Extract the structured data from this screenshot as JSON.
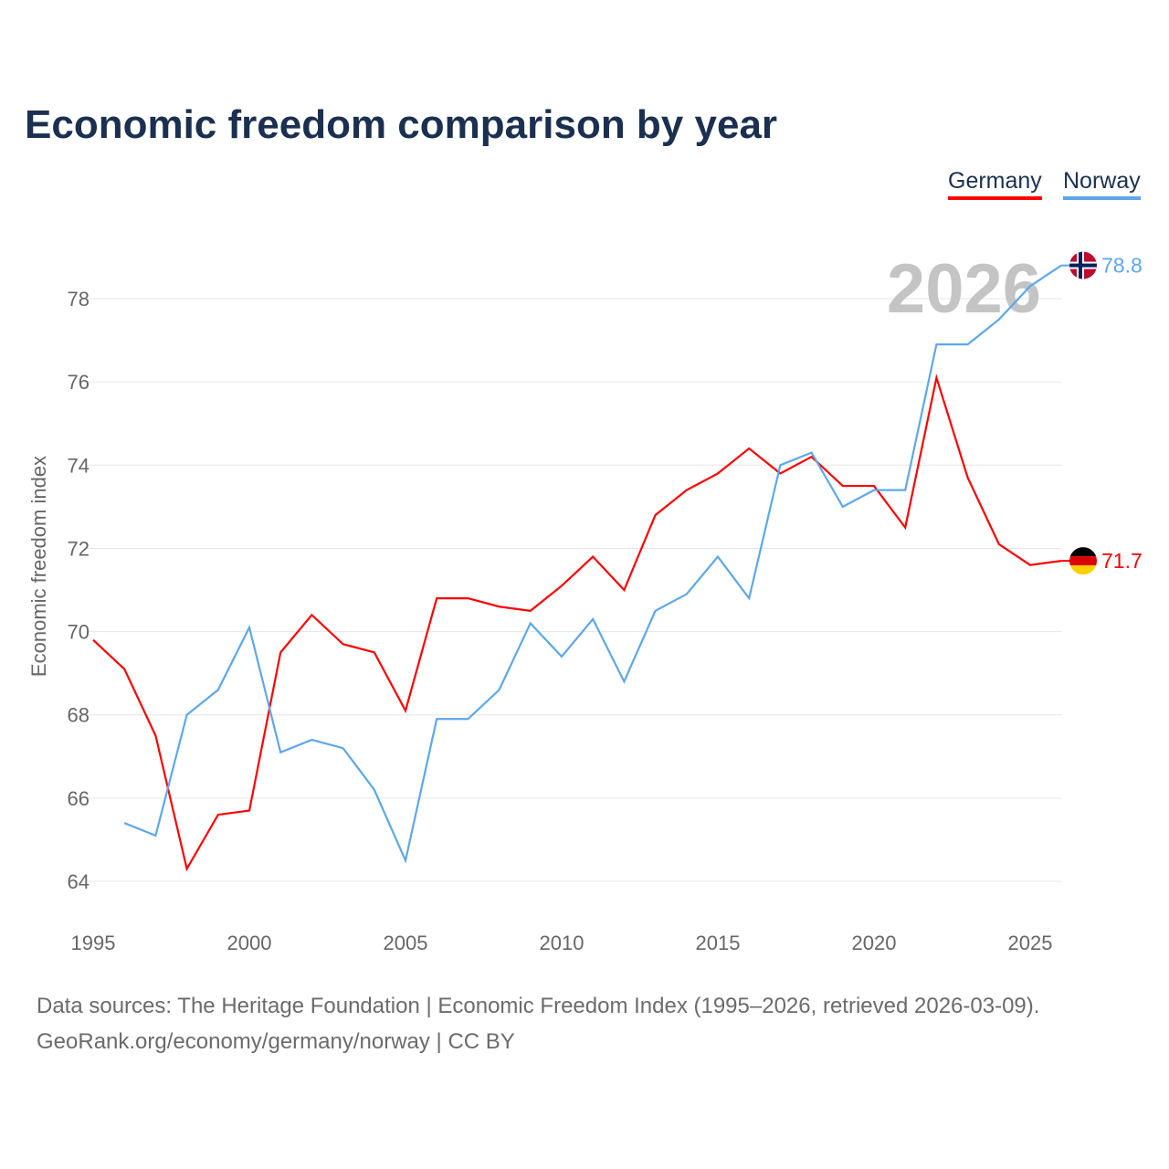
{
  "title": "Economic freedom comparison by year",
  "legend": [
    {
      "label": "Germany",
      "color": "#ff0000"
    },
    {
      "label": "Norway",
      "color": "#5da7ec"
    }
  ],
  "footer": {
    "line1": "Data sources: The Heritage Foundation | Economic Freedom Index (1995–2026, retrieved 2026-03-09).",
    "line2": "GeoRank.org/economy/germany/norway | CC BY"
  },
  "chart_data": {
    "type": "line",
    "title": "Economic freedom comparison by year",
    "xlabel": "",
    "ylabel": "Economic freedom index",
    "xlim": [
      1995,
      2026
    ],
    "ylim": [
      63.5,
      79.5
    ],
    "xticks": [
      1995,
      2000,
      2005,
      2010,
      2015,
      2020,
      2025
    ],
    "yticks": [
      64,
      66,
      68,
      70,
      72,
      74,
      76,
      78
    ],
    "year_watermark": "2026",
    "series": [
      {
        "name": "Germany",
        "color": "#ff0000",
        "end_label": "71.7",
        "flag": "germany-flag-icon",
        "x": [
          1995,
          1996,
          1997,
          1998,
          1999,
          2000,
          2001,
          2002,
          2003,
          2004,
          2005,
          2006,
          2007,
          2008,
          2009,
          2010,
          2011,
          2012,
          2013,
          2014,
          2015,
          2016,
          2017,
          2018,
          2019,
          2020,
          2021,
          2022,
          2023,
          2024,
          2025,
          2026
        ],
        "values": [
          69.8,
          69.1,
          67.5,
          64.3,
          65.6,
          65.7,
          69.5,
          70.4,
          69.7,
          69.5,
          68.1,
          70.8,
          70.8,
          70.6,
          70.5,
          71.1,
          71.8,
          71.0,
          72.8,
          73.4,
          73.8,
          74.4,
          73.8,
          74.2,
          73.5,
          73.5,
          72.5,
          76.1,
          73.7,
          72.1,
          71.6,
          71.7
        ]
      },
      {
        "name": "Norway",
        "color": "#5da7ec",
        "end_label": "78.8",
        "flag": "norway-flag-icon",
        "x": [
          1996,
          1997,
          1998,
          1999,
          2000,
          2001,
          2002,
          2003,
          2004,
          2005,
          2006,
          2007,
          2008,
          2009,
          2010,
          2011,
          2012,
          2013,
          2014,
          2015,
          2016,
          2017,
          2018,
          2019,
          2020,
          2021,
          2022,
          2023,
          2024,
          2025,
          2026
        ],
        "values": [
          65.4,
          65.1,
          68.0,
          68.6,
          70.1,
          67.1,
          67.4,
          67.2,
          66.2,
          64.5,
          67.9,
          67.9,
          68.6,
          70.2,
          69.4,
          70.3,
          68.8,
          70.5,
          70.9,
          71.8,
          70.8,
          74.0,
          74.3,
          73.0,
          73.4,
          73.4,
          76.9,
          76.9,
          77.5,
          78.3,
          78.8
        ]
      }
    ]
  }
}
